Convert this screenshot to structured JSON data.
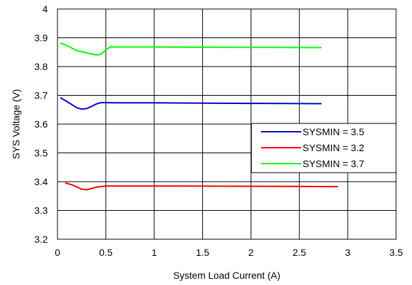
{
  "chart_data": {
    "type": "line",
    "xlabel": "System Load Current (A)",
    "ylabel": "SYS Voltage (V)",
    "xlim": [
      0,
      3.5
    ],
    "ylim": [
      3.2,
      4.0
    ],
    "xticks": [
      "0",
      "0.5",
      "1",
      "1.5",
      "2",
      "2.5",
      "3",
      "3.5"
    ],
    "yticks": [
      "3.2",
      "3.3",
      "3.4",
      "3.5",
      "3.6",
      "3.7",
      "3.8",
      "3.9",
      "4"
    ],
    "grid": true,
    "legend_position": "right",
    "series": [
      {
        "name": "SYSMIN = 3.5",
        "color": "#0000cc",
        "points": [
          [
            0.03,
            3.692
          ],
          [
            0.1,
            3.678
          ],
          [
            0.2,
            3.657
          ],
          [
            0.25,
            3.652
          ],
          [
            0.3,
            3.654
          ],
          [
            0.35,
            3.661
          ],
          [
            0.4,
            3.67
          ],
          [
            0.45,
            3.675
          ],
          [
            0.6,
            3.674
          ],
          [
            1.0,
            3.674
          ],
          [
            2.0,
            3.672
          ],
          [
            2.73,
            3.671
          ]
        ]
      },
      {
        "name": "SYSMIN = 3.2",
        "color": "#ff0000",
        "points": [
          [
            0.08,
            3.396
          ],
          [
            0.15,
            3.389
          ],
          [
            0.2,
            3.382
          ],
          [
            0.25,
            3.374
          ],
          [
            0.3,
            3.372
          ],
          [
            0.35,
            3.376
          ],
          [
            0.4,
            3.381
          ],
          [
            0.5,
            3.385
          ],
          [
            1.0,
            3.385
          ],
          [
            2.0,
            3.384
          ],
          [
            2.9,
            3.383
          ]
        ]
      },
      {
        "name": "SYSMIN = 3.7",
        "color": "#00ff00",
        "points": [
          [
            0.03,
            3.882
          ],
          [
            0.1,
            3.873
          ],
          [
            0.2,
            3.855
          ],
          [
            0.3,
            3.848
          ],
          [
            0.38,
            3.842
          ],
          [
            0.42,
            3.84
          ],
          [
            0.46,
            3.846
          ],
          [
            0.5,
            3.858
          ],
          [
            0.55,
            3.869
          ],
          [
            0.6,
            3.868
          ],
          [
            1.0,
            3.868
          ],
          [
            2.0,
            3.867
          ],
          [
            2.73,
            3.866
          ]
        ]
      }
    ]
  }
}
